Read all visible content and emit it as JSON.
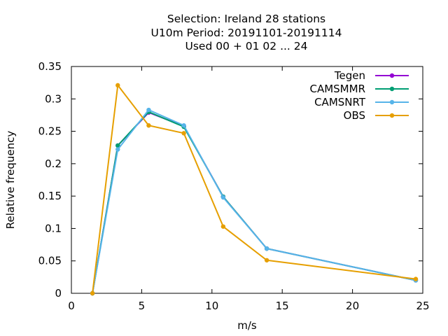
{
  "chart_data": {
    "type": "line",
    "title_lines": [
      "Selection: Ireland      28 stations",
      "U10m  Period: 20191101-20191114",
      "Used  00 + 01 02 ... 24"
    ],
    "xlabel": "m/s",
    "ylabel": "Relative frequency",
    "xlim": [
      0,
      25
    ],
    "ylim": [
      0,
      0.35
    ],
    "x_ticks": [
      0,
      5,
      10,
      15,
      20,
      25
    ],
    "x_tick_labels": [
      "0",
      "5",
      "10",
      "15",
      "20",
      "25"
    ],
    "y_ticks": [
      0,
      0.05,
      0.1,
      0.15,
      0.2,
      0.25,
      0.3,
      0.35
    ],
    "y_tick_labels": [
      "0",
      "0.05",
      "0.1",
      "0.15",
      "0.2",
      "0.25",
      "0.3",
      "0.35"
    ],
    "grid": false,
    "legend_position": "top-right",
    "series": [
      {
        "name": "Tegen",
        "color": "#9400d3",
        "x": [
          1.5,
          3.3,
          5.5,
          8.0,
          10.8,
          13.9,
          24.5
        ],
        "y": [
          0.0,
          0.228,
          0.279,
          0.258,
          0.149,
          0.069,
          0.02
        ]
      },
      {
        "name": "CAMSMMR",
        "color": "#009e73",
        "x": [
          1.5,
          3.3,
          5.5,
          8.0,
          10.8,
          13.9,
          24.5
        ],
        "y": [
          0.0,
          0.228,
          0.28,
          0.257,
          0.149,
          0.069,
          0.02
        ]
      },
      {
        "name": "CAMSNRT",
        "color": "#56b4e9",
        "x": [
          1.5,
          3.3,
          5.5,
          8.0,
          10.8,
          13.9,
          24.5
        ],
        "y": [
          0.0,
          0.222,
          0.283,
          0.259,
          0.148,
          0.069,
          0.02
        ]
      },
      {
        "name": "OBS",
        "color": "#e69f00",
        "x": [
          1.5,
          3.3,
          5.5,
          8.0,
          10.8,
          13.9,
          24.5
        ],
        "y": [
          0.0,
          0.321,
          0.259,
          0.247,
          0.103,
          0.051,
          0.022
        ]
      }
    ]
  }
}
